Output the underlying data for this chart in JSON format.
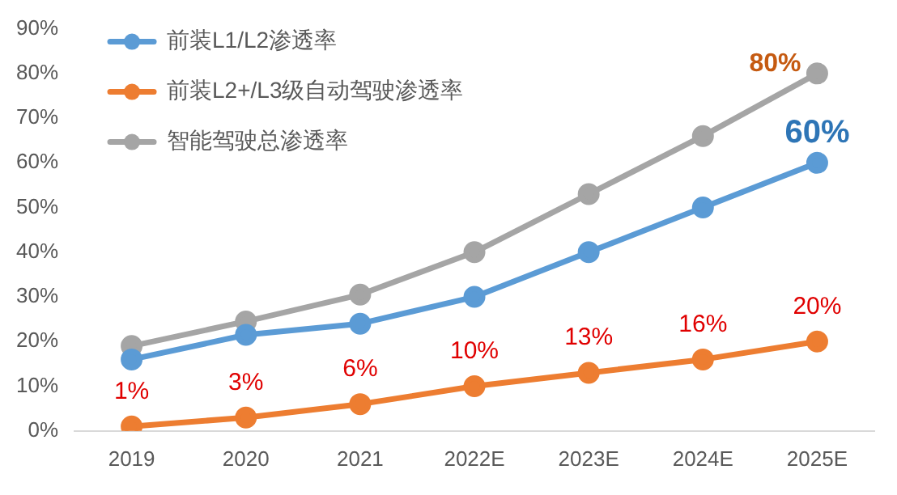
{
  "chart_data": {
    "type": "line",
    "categories": [
      "2019",
      "2020",
      "2021",
      "2022E",
      "2023E",
      "2024E",
      "2025E"
    ],
    "series": [
      {
        "name": "前装L1/L2渗透率",
        "color": "#5b9bd5",
        "values": [
          16,
          21.5,
          24,
          30,
          40,
          50,
          60
        ],
        "value_labels": [
          null,
          null,
          null,
          null,
          null,
          null,
          "60%"
        ]
      },
      {
        "name": "前装L2+/L3级自动驾驶渗透率",
        "color": "#ed7d31",
        "values": [
          1,
          3,
          6,
          10,
          13,
          16,
          20
        ],
        "value_labels": [
          "1%",
          "3%",
          "6%",
          "10%",
          "13%",
          "16%",
          "20%"
        ]
      },
      {
        "name": "智能驾驶总渗透率",
        "color": "#a5a5a5",
        "values": [
          19,
          24.5,
          30.5,
          40,
          53,
          66,
          80
        ],
        "value_labels": [
          null,
          null,
          null,
          null,
          null,
          null,
          "80%"
        ]
      }
    ],
    "ylim": [
      0,
      90
    ],
    "yticks": [
      {
        "value": 0,
        "label": "0%"
      },
      {
        "value": 10,
        "label": "10%"
      },
      {
        "value": 20,
        "label": "20%"
      },
      {
        "value": 30,
        "label": "30%"
      },
      {
        "value": 40,
        "label": "40%"
      },
      {
        "value": 50,
        "label": "50%"
      },
      {
        "value": 60,
        "label": "60%"
      },
      {
        "value": 70,
        "label": "70%"
      },
      {
        "value": 80,
        "label": "80%"
      },
      {
        "value": 90,
        "label": "90%"
      }
    ],
    "grid": false,
    "legend": "top left",
    "marker": "circle",
    "line_style": "solid"
  }
}
